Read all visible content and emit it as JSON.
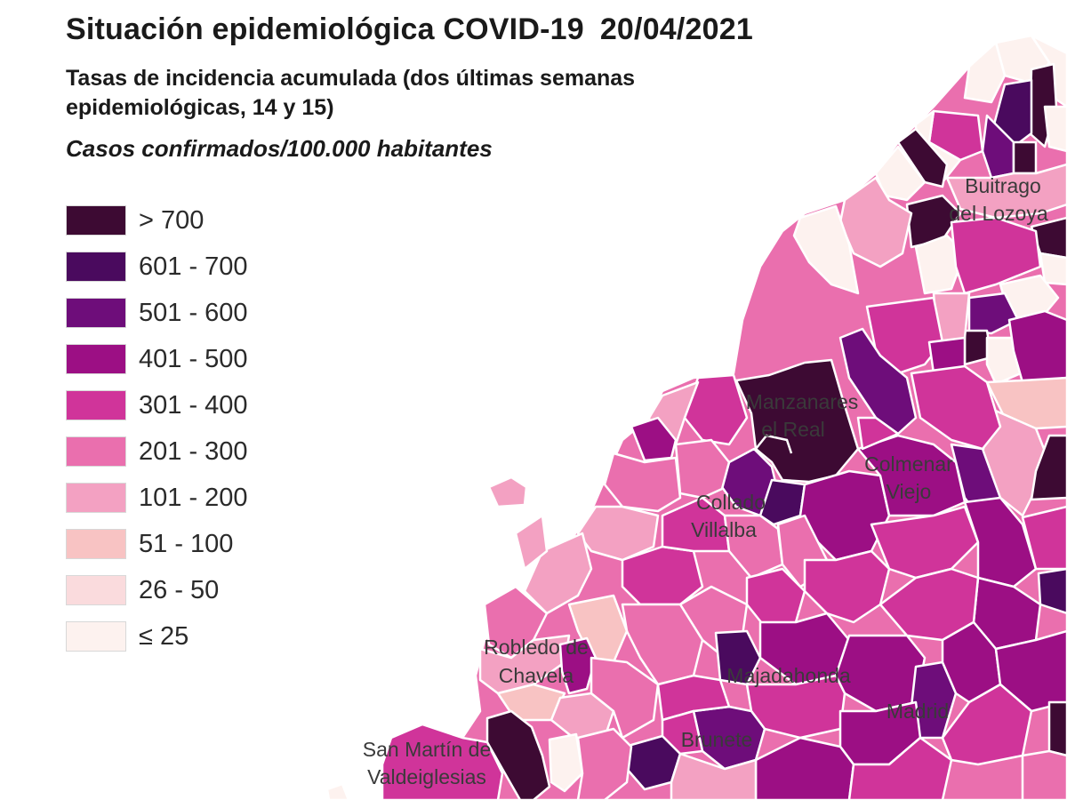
{
  "header": {
    "title": "Situación epidemiológica COVID-19",
    "date": "20/04/2021",
    "subtitle": "Tasas de incidencia acumulada (dos últimas semanas epidemiológicas, 14 y 15)",
    "units": "Casos confirmados/100.000 habitantes"
  },
  "legend": [
    {
      "label": "> 700",
      "color": "#3d0a33"
    },
    {
      "label": "601 - 700",
      "color": "#4a0a5e"
    },
    {
      "label": "501 - 600",
      "color": "#6e0d7a"
    },
    {
      "label": "401 - 500",
      "color": "#9c0f84"
    },
    {
      "label": "301 - 400",
      "color": "#d0349a"
    },
    {
      "label": "201 - 300",
      "color": "#ea6fae"
    },
    {
      "label": "101 - 200",
      "color": "#f3a1c2"
    },
    {
      "label": "51 - 100",
      "color": "#f8c3c3"
    },
    {
      "label": "26 - 50",
      "color": "#fadbdd"
    },
    {
      "label": "≤ 25",
      "color": "#fdf2ef"
    }
  ],
  "places": {
    "buitrago": {
      "line1": "Buitrago",
      "line2": "del Lozoya"
    },
    "manzanares": {
      "line1": "Manzanares",
      "line2": "el Real"
    },
    "colmenar": {
      "line1": "Colmenar",
      "line2": "Viejo"
    },
    "collado": {
      "line1": "Collado",
      "line2": "Villalba"
    },
    "robledo": {
      "line1": "Robledo de",
      "line2": "Chavela"
    },
    "majadahonda": {
      "line1": "Majadahonda"
    },
    "madrid": {
      "line1": "Madrid"
    },
    "brunete": {
      "line1": "Brunete"
    },
    "sanmartin": {
      "line1": "San Martín de",
      "line2": "Valdeiglesias"
    }
  }
}
